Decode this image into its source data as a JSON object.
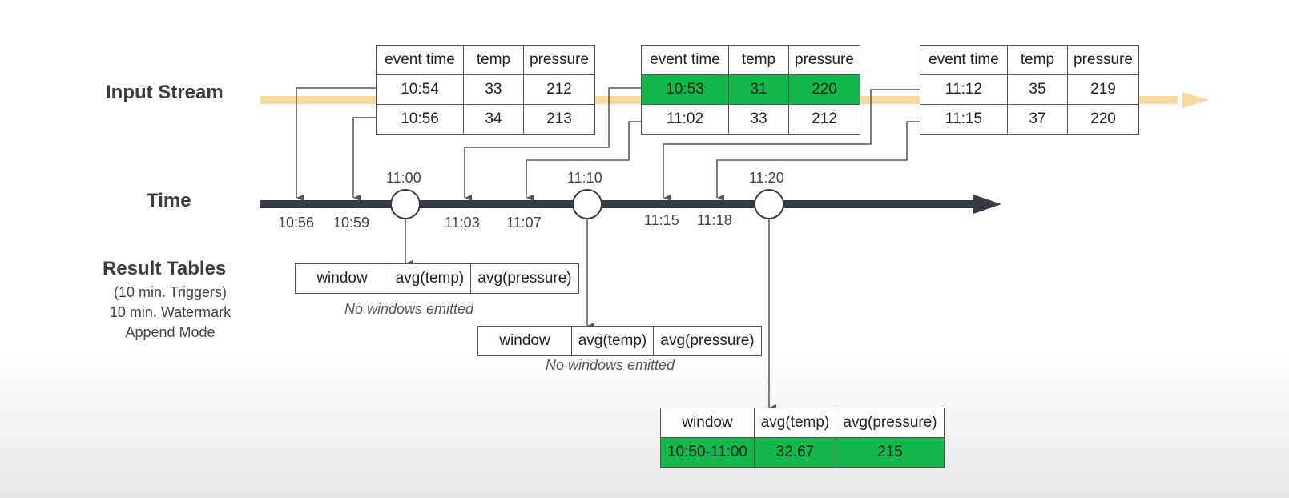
{
  "labels": {
    "input_stream": "Input Stream",
    "time": "Time",
    "result_tables": "Result Tables",
    "result_sub1": "(10 min. Triggers)",
    "result_sub2": "10 min. Watermark",
    "result_sub3": "Append Mode"
  },
  "input_tables": [
    {
      "headers": [
        "event  time",
        "temp",
        "pressure"
      ],
      "rows": [
        [
          "10:54",
          "33",
          "212"
        ],
        [
          "10:56",
          "34",
          "213"
        ]
      ],
      "highlight_row": -1
    },
    {
      "headers": [
        "event  time",
        "temp",
        "pressure"
      ],
      "rows": [
        [
          "10:53",
          "31",
          "220"
        ],
        [
          "11:02",
          "33",
          "212"
        ]
      ],
      "highlight_row": 0
    },
    {
      "headers": [
        "event  time",
        "temp",
        "pressure"
      ],
      "rows": [
        [
          "11:12",
          "35",
          "219"
        ],
        [
          "11:15",
          "37",
          "220"
        ]
      ],
      "highlight_row": -1
    }
  ],
  "triggers": [
    "11:00",
    "11:10",
    "11:20"
  ],
  "arrival_times": [
    "10:56",
    "10:59",
    "11:03",
    "11:07",
    "11:15",
    "11:18"
  ],
  "result_tables": [
    {
      "headers": [
        "window",
        "avg(temp)",
        "avg(pressure)"
      ],
      "rows": [],
      "note": "No windows emitted"
    },
    {
      "headers": [
        "window",
        "avg(temp)",
        "avg(pressure)"
      ],
      "rows": [],
      "note": "No windows emitted"
    },
    {
      "headers": [
        "window",
        "avg(temp)",
        "avg(pressure)"
      ],
      "rows": [
        [
          "10:50-11:00",
          "32.67",
          "215"
        ]
      ],
      "note": ""
    }
  ],
  "colors": {
    "highlight": "#12b84a",
    "stream": "#f8d9a4",
    "timeline": "#363a45",
    "connector": "#555555"
  }
}
